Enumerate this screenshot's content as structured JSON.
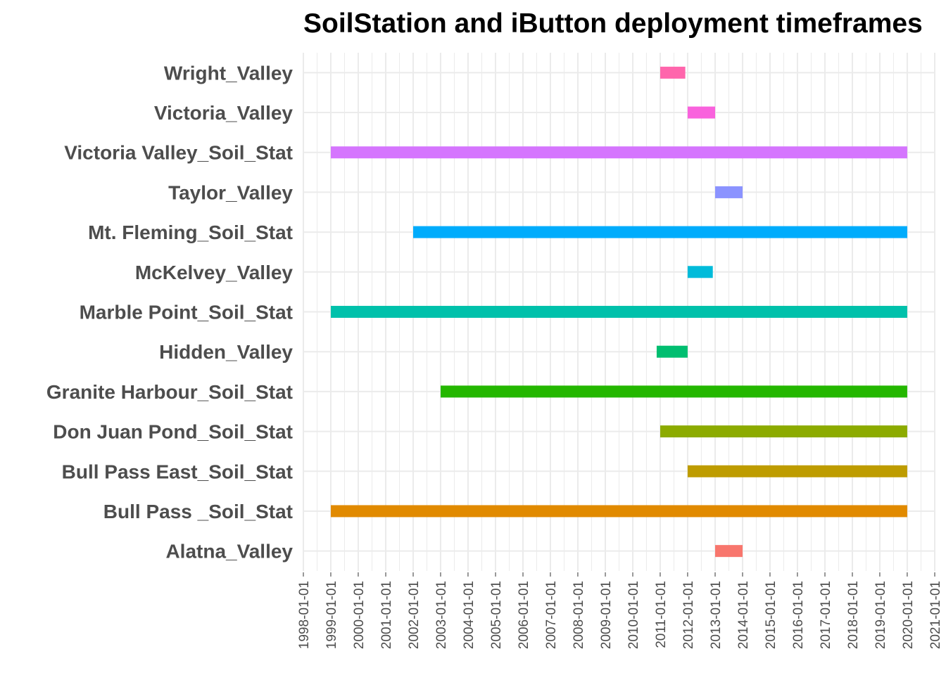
{
  "chart_data": {
    "type": "bar",
    "orientation": "horizontal-range",
    "title": "SoilStation and iButton deployment timeframes",
    "xlabel": "",
    "ylabel": "",
    "xlim": [
      "1998-01-01",
      "2021-01-01"
    ],
    "x_ticks": [
      "1998-01-01",
      "1999-01-01",
      "2000-01-01",
      "2001-01-01",
      "2002-01-01",
      "2003-01-01",
      "2004-01-01",
      "2005-01-01",
      "2006-01-01",
      "2007-01-01",
      "2008-01-01",
      "2009-01-01",
      "2010-01-01",
      "2011-01-01",
      "2012-01-01",
      "2013-01-01",
      "2014-01-01",
      "2015-01-01",
      "2016-01-01",
      "2017-01-01",
      "2018-01-01",
      "2019-01-01",
      "2020-01-01",
      "2021-01-01"
    ],
    "grid": true,
    "legend": "none",
    "categories": [
      "Alatna_Valley",
      "Bull Pass _Soil_Stat",
      "Bull Pass East_Soil_Stat",
      "Don Juan Pond_Soil_Stat",
      "Granite Harbour_Soil_Stat",
      "Hidden_Valley",
      "Marble Point_Soil_Stat",
      "McKelvey_Valley",
      "Mt. Fleming_Soil_Stat",
      "Taylor_Valley",
      "Victoria Valley_Soil_Stat",
      "Victoria_Valley",
      "Wright_Valley"
    ],
    "start": [
      "2013-01-01",
      "1999-01-01",
      "2012-01-01",
      "2011-01-01",
      "2003-01-01",
      "2010-11-15",
      "1999-01-01",
      "2012-01-01",
      "2002-01-01",
      "2013-01-01",
      "1999-01-01",
      "2012-01-01",
      "2011-01-01"
    ],
    "end": [
      "2014-01-01",
      "2020-01-01",
      "2020-01-01",
      "2020-01-01",
      "2020-01-01",
      "2012-01-01",
      "2020-01-01",
      "2012-12-01",
      "2020-01-01",
      "2014-01-01",
      "2020-01-01",
      "2013-01-01",
      "2011-12-01"
    ],
    "colors": [
      "#F8766D",
      "#E18A00",
      "#BE9C00",
      "#8CAB00",
      "#24B700",
      "#00BE70",
      "#00C1AB",
      "#00BBDA",
      "#00ACFC",
      "#8B93FF",
      "#D575FE",
      "#F962DD",
      "#FF65AC"
    ]
  }
}
